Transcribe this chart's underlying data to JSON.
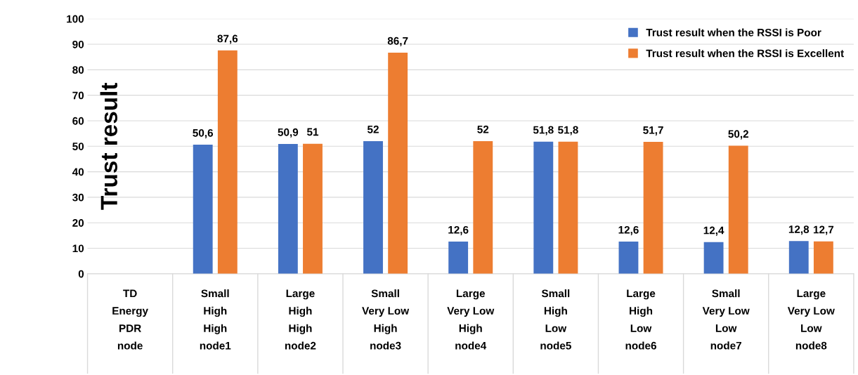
{
  "chart_data": {
    "type": "bar",
    "ylabel": "Trust result",
    "categories": [
      "TD\nEnergy\nPDR\nnode",
      "Small\nHigh\nHigh\nnode1",
      "Large\nHigh\nHigh\nnode2",
      "Small\nVery Low\nHigh\nnode3",
      "Large\nVery Low\nHigh\nnode4",
      "Small\nHigh\nLow\nnode5",
      "Large\nHigh\nLow\nnode6",
      "Small\nVery Low\nLow\nnode7",
      "Large\nVery Low\nLow\nnode8"
    ],
    "series": [
      {
        "name": "Trust result when the RSSI is Poor",
        "color": "#4472c4",
        "values": [
          null,
          50.6,
          50.9,
          52,
          12.6,
          51.8,
          12.6,
          12.4,
          12.8
        ],
        "value_labels": [
          null,
          "50,6",
          "50,9",
          "52",
          "12,6",
          "51,8",
          "12,6",
          "12,4",
          "12,8"
        ]
      },
      {
        "name": "Trust result when the RSSI is Excellent",
        "color": "#ed7d31",
        "values": [
          null,
          87.6,
          51,
          86.7,
          52,
          51.8,
          51.7,
          50.2,
          12.7
        ],
        "value_labels": [
          null,
          "87,6",
          "51",
          "86,7",
          "52",
          "51,8",
          "51,7",
          "50,2",
          "12,7"
        ]
      }
    ],
    "ylim": [
      0,
      100
    ],
    "yticks": [
      0,
      10,
      20,
      30,
      40,
      50,
      60,
      70,
      80,
      90,
      100
    ],
    "grid": "y",
    "legend": "top right"
  }
}
